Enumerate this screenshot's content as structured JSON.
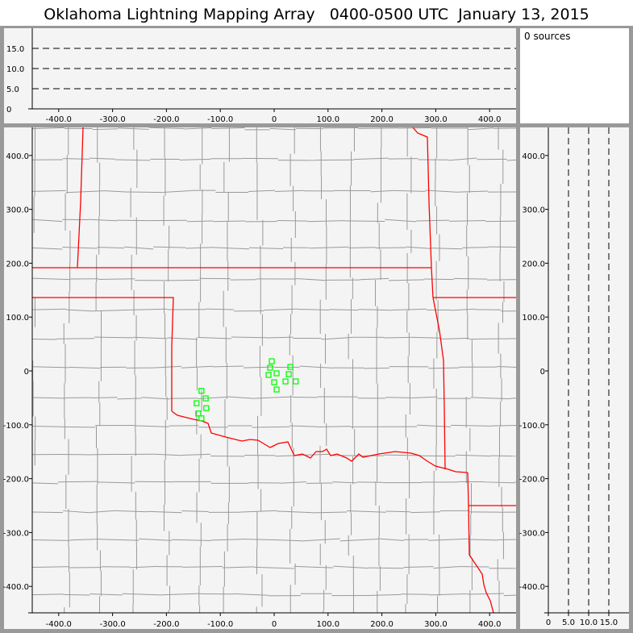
{
  "title": "Oklahoma Lightning Mapping Array   0400-0500 UTC  January 13, 2015",
  "sources_label": "0 sources",
  "colors": {
    "state_border": "#ff0000",
    "county_border": "#999999",
    "source_marker": "#00ff00",
    "panel_bg": "#f4f4f4",
    "frame": "#999999"
  },
  "altitude_ticks": [
    "0",
    "5.0",
    "10.0",
    "15.0"
  ],
  "altitude_values": [
    0,
    5,
    10,
    15
  ],
  "x_ticks": [
    "-400.0",
    "-300.0",
    "-200.0",
    "-100.0",
    "0",
    "100.0",
    "200.0",
    "300.0",
    "400.0"
  ],
  "x_values": [
    -400,
    -300,
    -200,
    -100,
    0,
    100,
    200,
    300,
    400
  ],
  "y_ticks": [
    "400.0",
    "300.0",
    "200.0",
    "100.0",
    "0",
    "-100.0",
    "-200.0",
    "-300.0",
    "-400.0"
  ],
  "y_values": [
    400,
    300,
    200,
    100,
    0,
    -100,
    -200,
    -300,
    -400
  ],
  "map_sources": [
    [
      -4.5,
      18
    ],
    [
      -7.5,
      6
    ],
    [
      30,
      7.5
    ],
    [
      -10.5,
      -7.5
    ],
    [
      4.5,
      -4.5
    ],
    [
      27,
      -6
    ],
    [
      0,
      -21
    ],
    [
      21,
      -19.5
    ],
    [
      40,
      -19.5
    ],
    [
      4.5,
      -34.5
    ],
    [
      -135,
      -37
    ],
    [
      -127,
      -51
    ],
    [
      -144,
      -60
    ],
    [
      -126,
      -69
    ],
    [
      -141,
      -79
    ],
    [
      -135,
      -88
    ]
  ]
}
